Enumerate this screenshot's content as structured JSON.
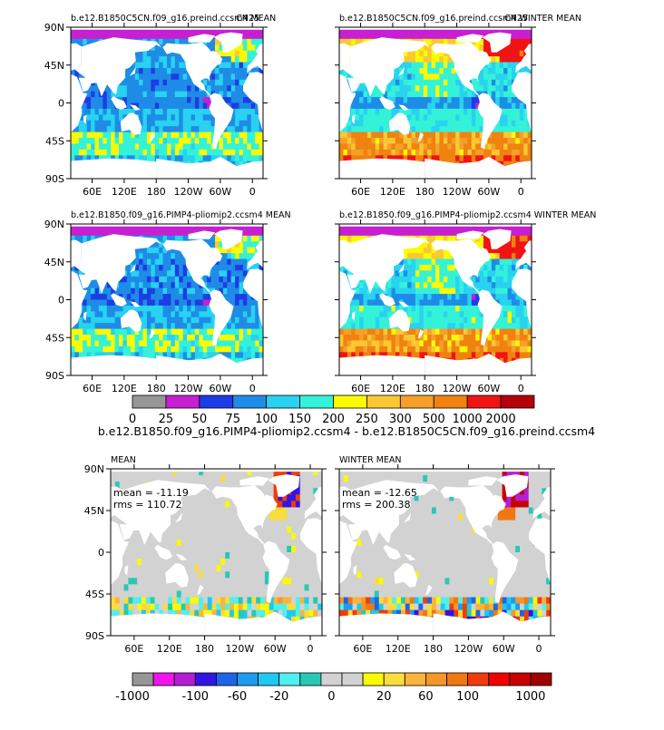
{
  "chart_data": {
    "type": "heatmap",
    "colors": {
      "land": "#ffffff",
      "outline": "#000000"
    },
    "top_panels": [
      {
        "title": "b.e12.B1850C5CN.f09_g16.preind.ccsm4 MEAN",
        "corner_label": "CN25",
        "field": "mean_pre"
      },
      {
        "title": "b.e12.B1850C5CN.f09_g16.preind.ccsm4 WINTER MEAN",
        "corner_label": "CN25",
        "field": "winter_pre"
      },
      {
        "title": "b.e12.B1850.f09_g16.PIMP4-pliomip2.ccsm4 MEAN",
        "corner_label": "",
        "field": "mean_plio"
      },
      {
        "title": "b.e12.B1850.f09_g16.PIMP4-pliomip2.ccsm4 WINTER MEAN",
        "corner_label": "",
        "field": "winter_plio"
      }
    ],
    "lat_ticks": [
      "90N",
      "45N",
      "0",
      "45S",
      "90S"
    ],
    "lon_ticks": [
      "60E",
      "120E",
      "180",
      "120W",
      "60W",
      "0"
    ],
    "colorbar1": {
      "levels": [
        0,
        25,
        50,
        75,
        100,
        150,
        200,
        250,
        300,
        500,
        1000,
        2000
      ],
      "tick_labels": [
        "0",
        "25",
        "50",
        "75",
        "100",
        "150",
        "200",
        "250",
        "300",
        "500",
        "1000",
        "2000"
      ],
      "colors": [
        "#969696",
        "#c71fd2",
        "#1e3ce6",
        "#1e8ce6",
        "#28d2f0",
        "#34f2d8",
        "#fafa00",
        "#fac832",
        "#f5a028",
        "#f08210",
        "#f01414",
        "#b4000a"
      ]
    },
    "diff_title": "b.e12.B1850.f09_g16.PIMP4-pliomip2.ccsm4 - b.e12.B1850C5CN.f09_g16.preind.ccsm4",
    "diff_panels": [
      {
        "title": "MEAN",
        "mean_label": "mean = -11.19",
        "rms_label": "rms = 110.72",
        "field": "mean_diff"
      },
      {
        "title": "WINTER MEAN",
        "mean_label": "mean = -12.65",
        "rms_label": "rms = 200.38",
        "field": "winter_diff"
      }
    ],
    "colorbar2": {
      "levels": [
        -1000,
        -500,
        -300,
        -100,
        -80,
        -60,
        -40,
        -20,
        -10,
        0,
        10,
        20,
        40,
        60,
        80,
        100,
        300,
        500,
        1000
      ],
      "tick_labels": [
        "-1000",
        "-100",
        "-60",
        "-20",
        "0",
        "20",
        "60",
        "100",
        "1000"
      ],
      "colors": [
        "#969696",
        "#f014f0",
        "#b41ed2",
        "#3214e6",
        "#1e64e6",
        "#1e9bf0",
        "#1ec8f0",
        "#50f0f0",
        "#28c8b4",
        "#d2d2d2",
        "#d2d2d2",
        "#fafa00",
        "#fadc3c",
        "#fab43c",
        "#f59628",
        "#f07814",
        "#f03c0a",
        "#f00000",
        "#c80000",
        "#a00000"
      ]
    }
  }
}
